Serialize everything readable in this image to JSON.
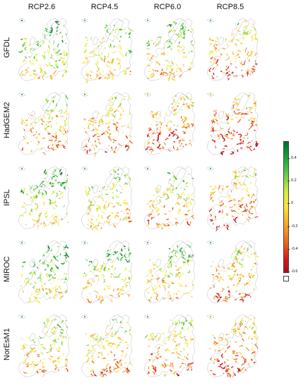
{
  "columns": [
    "RCP2.6",
    "RCP4.5",
    "RCP6.0",
    "RCP8.5"
  ],
  "rows": [
    "GFDL",
    "HadGEM2",
    "IPSL",
    "MIROC",
    "NorEsM1"
  ],
  "colorbar": {
    "ticks": [
      "0.4",
      "0.2",
      "0",
      "-0.2",
      "-0.4",
      "-0.6"
    ],
    "tick_values": [
      0.4,
      0.2,
      0,
      -0.2,
      -0.4,
      -0.6
    ],
    "range": [
      -0.6,
      0.55
    ],
    "colors": [
      "#a50f15",
      "#d7191c",
      "#e8551a",
      "#f08a24",
      "#f7b52b",
      "#fde03a",
      "#d9ef3b",
      "#91d84a",
      "#3fbf43",
      "#159a3a",
      "#006d2c"
    ]
  },
  "panel_tendency": [
    [
      0.15,
      0.05,
      0.0,
      -0.15
    ],
    [
      -0.1,
      -0.2,
      -0.25,
      -0.35
    ],
    [
      0.1,
      0.0,
      -0.05,
      -0.2
    ],
    [
      0.12,
      0.05,
      0.0,
      -0.15
    ],
    [
      0.0,
      -0.1,
      -0.15,
      -0.25
    ]
  ]
}
